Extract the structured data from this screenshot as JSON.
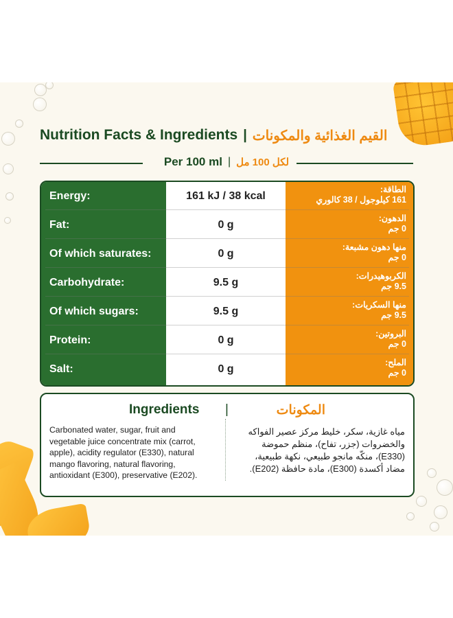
{
  "heading": {
    "title_en": "Nutrition Facts & Ingredients",
    "separator": "|",
    "title_ar": "القيم الغذائية والمكونات"
  },
  "serving": {
    "per_en": "Per 100 ml",
    "separator": "|",
    "per_ar": "لكل 100 مل"
  },
  "nutrition_rows": [
    {
      "label_en": "Energy:",
      "value": "161 kJ / 38 kcal",
      "label_ar": "الطاقة:",
      "value_ar": "161 كيلوجول / 38 كالوري"
    },
    {
      "label_en": "Fat:",
      "value": "0 g",
      "label_ar": "الدهون:",
      "value_ar": "0 جم"
    },
    {
      "label_en": "Of which saturates:",
      "value": "0 g",
      "label_ar": "منها دهون مشبعة:",
      "value_ar": "0 جم"
    },
    {
      "label_en": "Carbohydrate:",
      "value": "9.5 g",
      "label_ar": "الكربوهيدرات:",
      "value_ar": "9.5 جم"
    },
    {
      "label_en": "Of which sugars:",
      "value": "9.5 g",
      "label_ar": "منها السكريات:",
      "value_ar": "9.5 جم"
    },
    {
      "label_en": "Protein:",
      "value": "0 g",
      "label_ar": "البروتين:",
      "value_ar": "0 جم"
    },
    {
      "label_en": "Salt:",
      "value": "0 g",
      "label_ar": "الملح:",
      "value_ar": "0 جم"
    }
  ],
  "ingredients": {
    "heading_en": "Ingredients",
    "separator": "|",
    "heading_ar": "المكونات",
    "text_en_lines": [
      "Carbonated water, sugar, fruit and",
      "vegetable juice concentrate mix (carrot,",
      "apple), acidity regulator (E330), natural",
      "mango flavoring, natural flavoring,",
      "antioxidant (E300), preservative (E202)."
    ],
    "text_ar_lines": [
      "مياه غازية، سكر، خليط مركز عصير الفواكه",
      "والخضروات (جزر، تفاح)، منظم حموضة",
      "(E330)، منكّه مانجو طبيعي، نكهة طبيعية،",
      "مضاد أكسدة (E300)، مادة حافظة (E202)."
    ]
  },
  "colors": {
    "brand_green": "#2a6e2f",
    "dark_green": "#1b4a22",
    "brand_orange": "#f1920f",
    "background": "#fbf8ef"
  }
}
